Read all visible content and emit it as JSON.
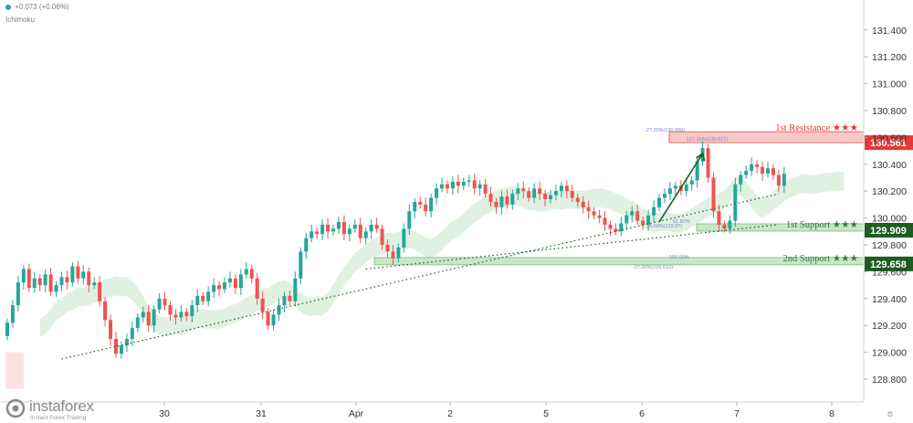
{
  "header": {
    "change": "+0.073 (+0.06%)",
    "indicator": "Ichimoku"
  },
  "watermark": {
    "brand": "instaforex",
    "tagline": "Instant Forex Trading"
  },
  "settings_icon": "gear-icon",
  "colors": {
    "up": "#26a69a",
    "down": "#ef5350",
    "resistance": "#e53935",
    "support_light": "#a5d6a7",
    "support_dark": "#2e7d32",
    "cloud": "#c8e6c9",
    "cloud_red": "#ffcdd2",
    "axis_text": "#333333"
  },
  "chart_data": {
    "type": "candlestick",
    "ylim": [
      128.7,
      131.6
    ],
    "y_ticks": [
      "128.800",
      "129.000",
      "129.200",
      "129.400",
      "129.600",
      "129.800",
      "130.000",
      "130.200",
      "130.400",
      "130.600",
      "130.800",
      "131.000",
      "131.200",
      "131.400"
    ],
    "x_ticks": [
      "30",
      "31",
      "Apr",
      "2",
      "5",
      "6",
      "7",
      "8"
    ],
    "candle_series": {
      "start_open": 129.12,
      "closes": [
        129.22,
        129.35,
        129.52,
        129.62,
        129.48,
        129.55,
        129.5,
        129.58,
        129.45,
        129.5,
        129.56,
        129.52,
        129.64,
        129.55,
        129.6,
        129.5,
        129.52,
        129.38,
        129.24,
        129.1,
        128.99,
        129.05,
        129.1,
        129.18,
        129.26,
        129.3,
        129.2,
        129.32,
        129.4,
        129.35,
        129.28,
        129.26,
        129.3,
        129.27,
        129.35,
        129.42,
        129.38,
        129.45,
        129.5,
        129.47,
        129.52,
        129.55,
        129.48,
        129.58,
        129.62,
        129.55,
        129.4,
        129.3,
        129.2,
        129.28,
        129.35,
        129.42,
        129.38,
        129.55,
        129.75,
        129.85,
        129.9,
        129.88,
        129.95,
        129.9,
        129.92,
        129.97,
        129.88,
        129.92,
        129.95,
        129.85,
        129.9,
        129.95,
        129.92,
        129.8,
        129.75,
        129.7,
        129.78,
        129.92,
        130.05,
        130.12,
        130.1,
        130.05,
        130.15,
        130.22,
        130.25,
        130.22,
        130.27,
        130.24,
        130.27,
        130.28,
        130.22,
        130.25,
        130.18,
        130.12,
        130.08,
        130.16,
        130.1,
        130.18,
        130.22,
        130.2,
        130.15,
        130.22,
        130.18,
        130.14,
        130.17,
        130.2,
        130.24,
        130.2,
        130.15,
        130.12,
        130.08,
        130.05,
        130.02,
        130.0,
        129.95,
        129.92,
        129.9,
        129.96,
        130.02,
        130.05,
        129.98,
        129.95,
        130.02,
        130.08,
        130.15,
        130.18,
        130.22,
        130.24,
        130.2,
        130.25,
        130.28,
        130.42,
        130.52,
        130.3,
        130.05,
        129.95,
        129.92,
        129.98,
        130.25,
        130.32,
        130.35,
        130.4,
        130.38,
        130.33,
        130.37,
        130.32,
        130.24,
        130.33
      ],
      "last_index_close": 130.33
    },
    "levels": [
      {
        "name": "1st Resistance ★★★",
        "value": 130.561,
        "label": "130.561",
        "fib_labels": [
          "-27.20%(130.608)",
          "127.20%(130.521)"
        ]
      },
      {
        "name": "1st Support ★★★",
        "value": 129.909,
        "label": "129.909",
        "fib_labels": [
          "61.80%",
          "78.60%(129.9?)"
        ]
      },
      {
        "name": "2nd Support ★★★",
        "value": 129.658,
        "label": "129.658",
        "fib_labels": [
          "100.00%",
          "-27.20%(129.610)"
        ]
      }
    ],
    "trendlines": [
      {
        "style": "dotted",
        "from": [
          10,
          128.95
        ],
        "to": [
          142,
          130.18
        ]
      },
      {
        "style": "dotted",
        "from": [
          66,
          129.62
        ],
        "to": [
          142,
          129.95
        ]
      }
    ],
    "projection_arrow": {
      "from": [
        120,
        129.97
      ],
      "to": [
        128,
        130.48
      ]
    }
  }
}
